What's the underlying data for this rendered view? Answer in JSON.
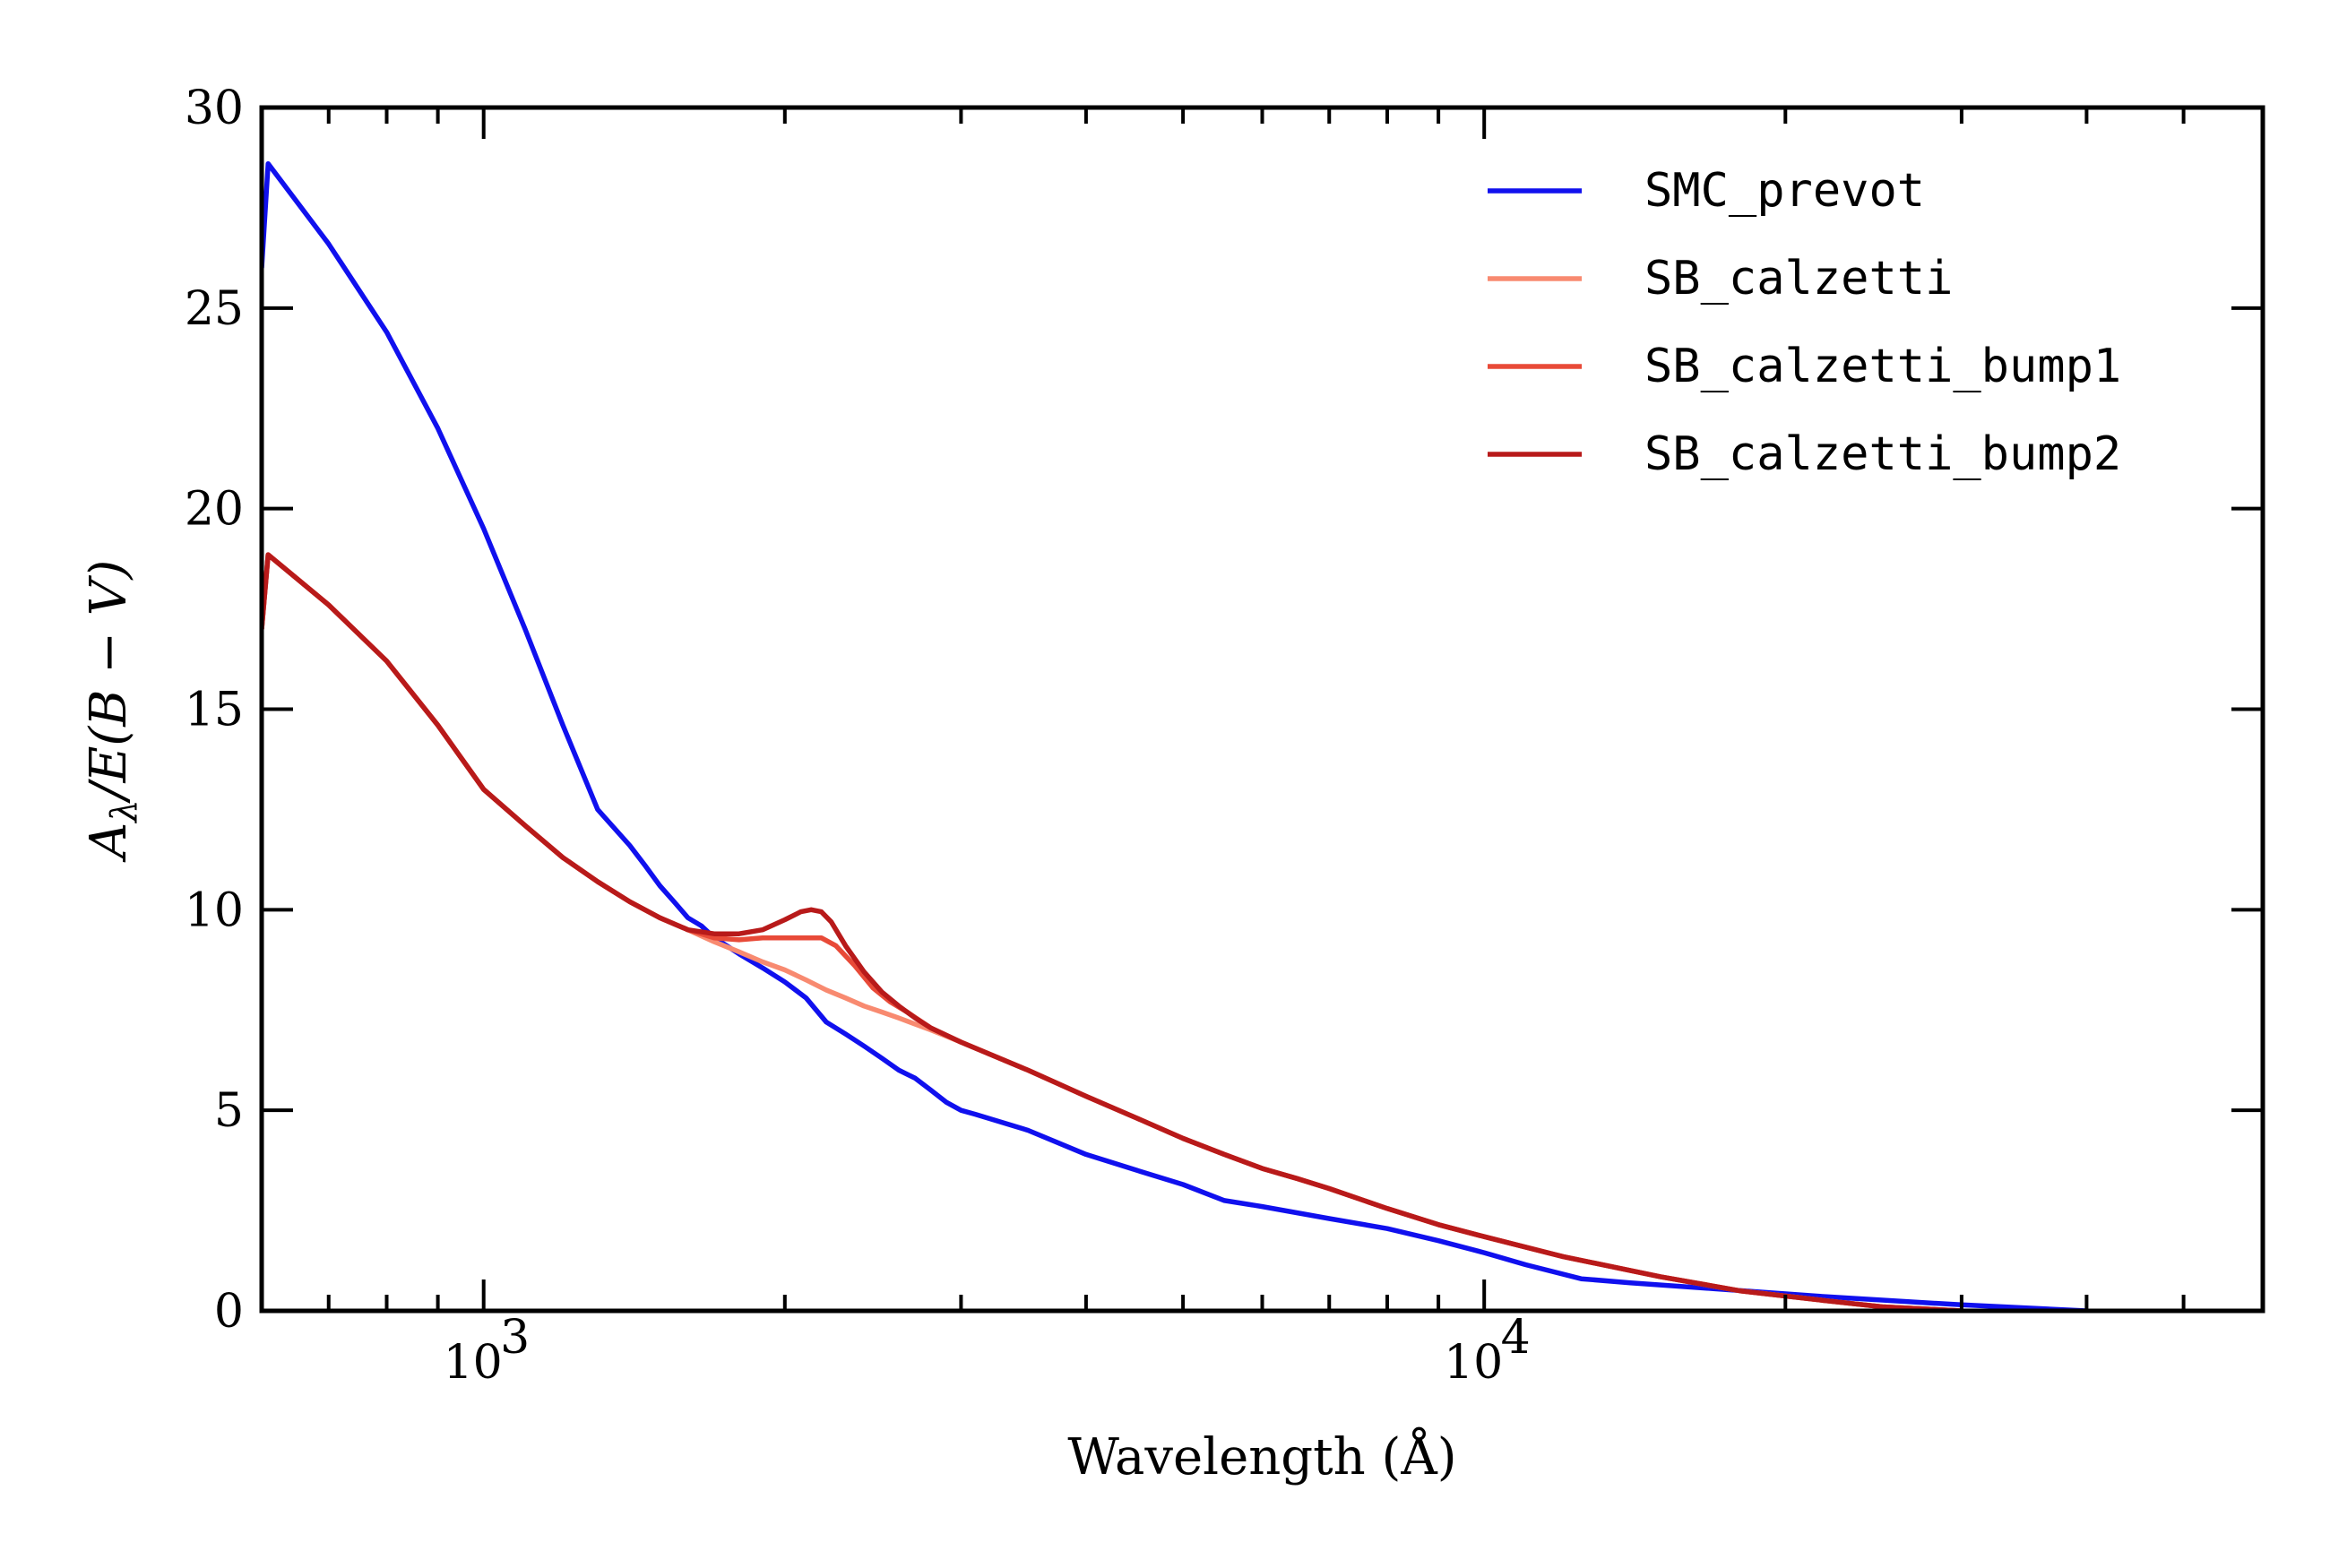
{
  "chart_data": {
    "type": "line",
    "xlabel": "Wavelength (Å)",
    "ylabel": "A_λ/E(B − V)",
    "xscale": "log",
    "xlim": [
      600,
      60000
    ],
    "ylim": [
      0,
      30
    ],
    "yticks": [
      0,
      5,
      10,
      15,
      20,
      25,
      30
    ],
    "xticks_major": [
      1000,
      10000
    ],
    "xtick_labels": [
      "10",
      "10"
    ],
    "xtick_exponents": [
      "3",
      "4"
    ],
    "grid": false,
    "legend": {
      "position": "top-right"
    },
    "series": [
      {
        "name": "SMC_prevot",
        "color": "#1010ee",
        "x": [
          600,
          609,
          700,
          800,
          900,
          1000,
          1100,
          1200,
          1300,
          1400,
          1450,
          1500,
          1550,
          1600,
          1650,
          1700,
          1750,
          1800,
          1900,
          2000,
          2100,
          2200,
          2300,
          2400,
          2500,
          2600,
          2700,
          2800,
          2900,
          3000,
          3100,
          3500,
          4000,
          4500,
          5000,
          5500,
          6000,
          7000,
          8000,
          9000,
          10000,
          11000,
          12500,
          14000,
          17000,
          22000,
          30000,
          40000
        ],
        "y": [
          26.0,
          28.6,
          26.6,
          24.4,
          22.0,
          19.5,
          17.0,
          14.6,
          12.5,
          11.6,
          11.1,
          10.6,
          10.2,
          9.8,
          9.6,
          9.3,
          9.1,
          8.9,
          8.55,
          8.2,
          7.8,
          7.2,
          6.9,
          6.6,
          6.3,
          6.0,
          5.8,
          5.5,
          5.2,
          5.0,
          4.9,
          4.5,
          3.9,
          3.5,
          3.15,
          2.75,
          2.6,
          2.3,
          2.05,
          1.75,
          1.45,
          1.15,
          0.8,
          0.7,
          0.55,
          0.35,
          0.15,
          0.0
        ]
      },
      {
        "name": "SB_calzetti",
        "color": "#f88a70",
        "x": [
          600,
          609,
          700,
          800,
          900,
          1000,
          1100,
          1200,
          1300,
          1400,
          1500,
          1600,
          1700,
          1800,
          1900,
          2000,
          2100,
          2200,
          2300,
          2400,
          2500,
          2600,
          2800,
          3000,
          3500,
          4000,
          4500,
          5000,
          5500,
          6000,
          6500,
          7000,
          8000,
          9000,
          10000,
          12000,
          15000,
          18000,
          22000,
          25000,
          30000
        ],
        "y": [
          17.0,
          18.85,
          17.6,
          16.2,
          14.6,
          13.0,
          12.1,
          11.3,
          10.7,
          10.2,
          9.8,
          9.5,
          9.2,
          8.95,
          8.7,
          8.5,
          8.25,
          8.0,
          7.8,
          7.6,
          7.45,
          7.3,
          7.0,
          6.7,
          6.0,
          5.35,
          4.8,
          4.3,
          3.9,
          3.55,
          3.3,
          3.05,
          2.55,
          2.15,
          1.85,
          1.35,
          0.85,
          0.5,
          0.25,
          0.1,
          0.0
        ]
      },
      {
        "name": "SB_calzetti_bump1",
        "color": "#e84a38",
        "x": [
          600,
          609,
          700,
          800,
          900,
          1000,
          1100,
          1200,
          1300,
          1400,
          1500,
          1600,
          1700,
          1800,
          1900,
          2000,
          2100,
          2175,
          2250,
          2350,
          2450,
          2550,
          2650,
          2800,
          3000,
          3500,
          4000,
          4500,
          5000,
          5500,
          6000,
          6500,
          7000,
          8000,
          9000,
          10000,
          12000,
          15000,
          18000,
          22000,
          25000,
          30000
        ],
        "y": [
          17.0,
          18.85,
          17.6,
          16.2,
          14.6,
          13.0,
          12.1,
          11.3,
          10.7,
          10.2,
          9.8,
          9.5,
          9.3,
          9.25,
          9.3,
          9.3,
          9.3,
          9.3,
          9.1,
          8.6,
          8.05,
          7.7,
          7.45,
          7.05,
          6.7,
          6.0,
          5.35,
          4.8,
          4.3,
          3.9,
          3.55,
          3.3,
          3.05,
          2.55,
          2.15,
          1.85,
          1.35,
          0.85,
          0.5,
          0.25,
          0.1,
          0.0
        ]
      },
      {
        "name": "SB_calzetti_bump2",
        "color": "#b81a1a",
        "x": [
          600,
          609,
          700,
          800,
          900,
          1000,
          1100,
          1200,
          1300,
          1400,
          1500,
          1600,
          1700,
          1800,
          1900,
          2000,
          2075,
          2125,
          2175,
          2225,
          2300,
          2400,
          2500,
          2600,
          2700,
          2800,
          3000,
          3500,
          4000,
          4500,
          5000,
          5500,
          6000,
          6500,
          7000,
          8000,
          9000,
          10000,
          12000,
          15000,
          18000,
          22000,
          25000,
          30000
        ],
        "y": [
          17.0,
          18.85,
          17.6,
          16.2,
          14.6,
          13.0,
          12.1,
          11.3,
          10.7,
          10.2,
          9.8,
          9.5,
          9.4,
          9.4,
          9.5,
          9.75,
          9.95,
          10.0,
          9.95,
          9.7,
          9.1,
          8.45,
          7.95,
          7.6,
          7.3,
          7.05,
          6.7,
          6.0,
          5.35,
          4.8,
          4.3,
          3.9,
          3.55,
          3.3,
          3.05,
          2.55,
          2.15,
          1.85,
          1.35,
          0.85,
          0.5,
          0.25,
          0.1,
          0.0
        ]
      }
    ]
  }
}
